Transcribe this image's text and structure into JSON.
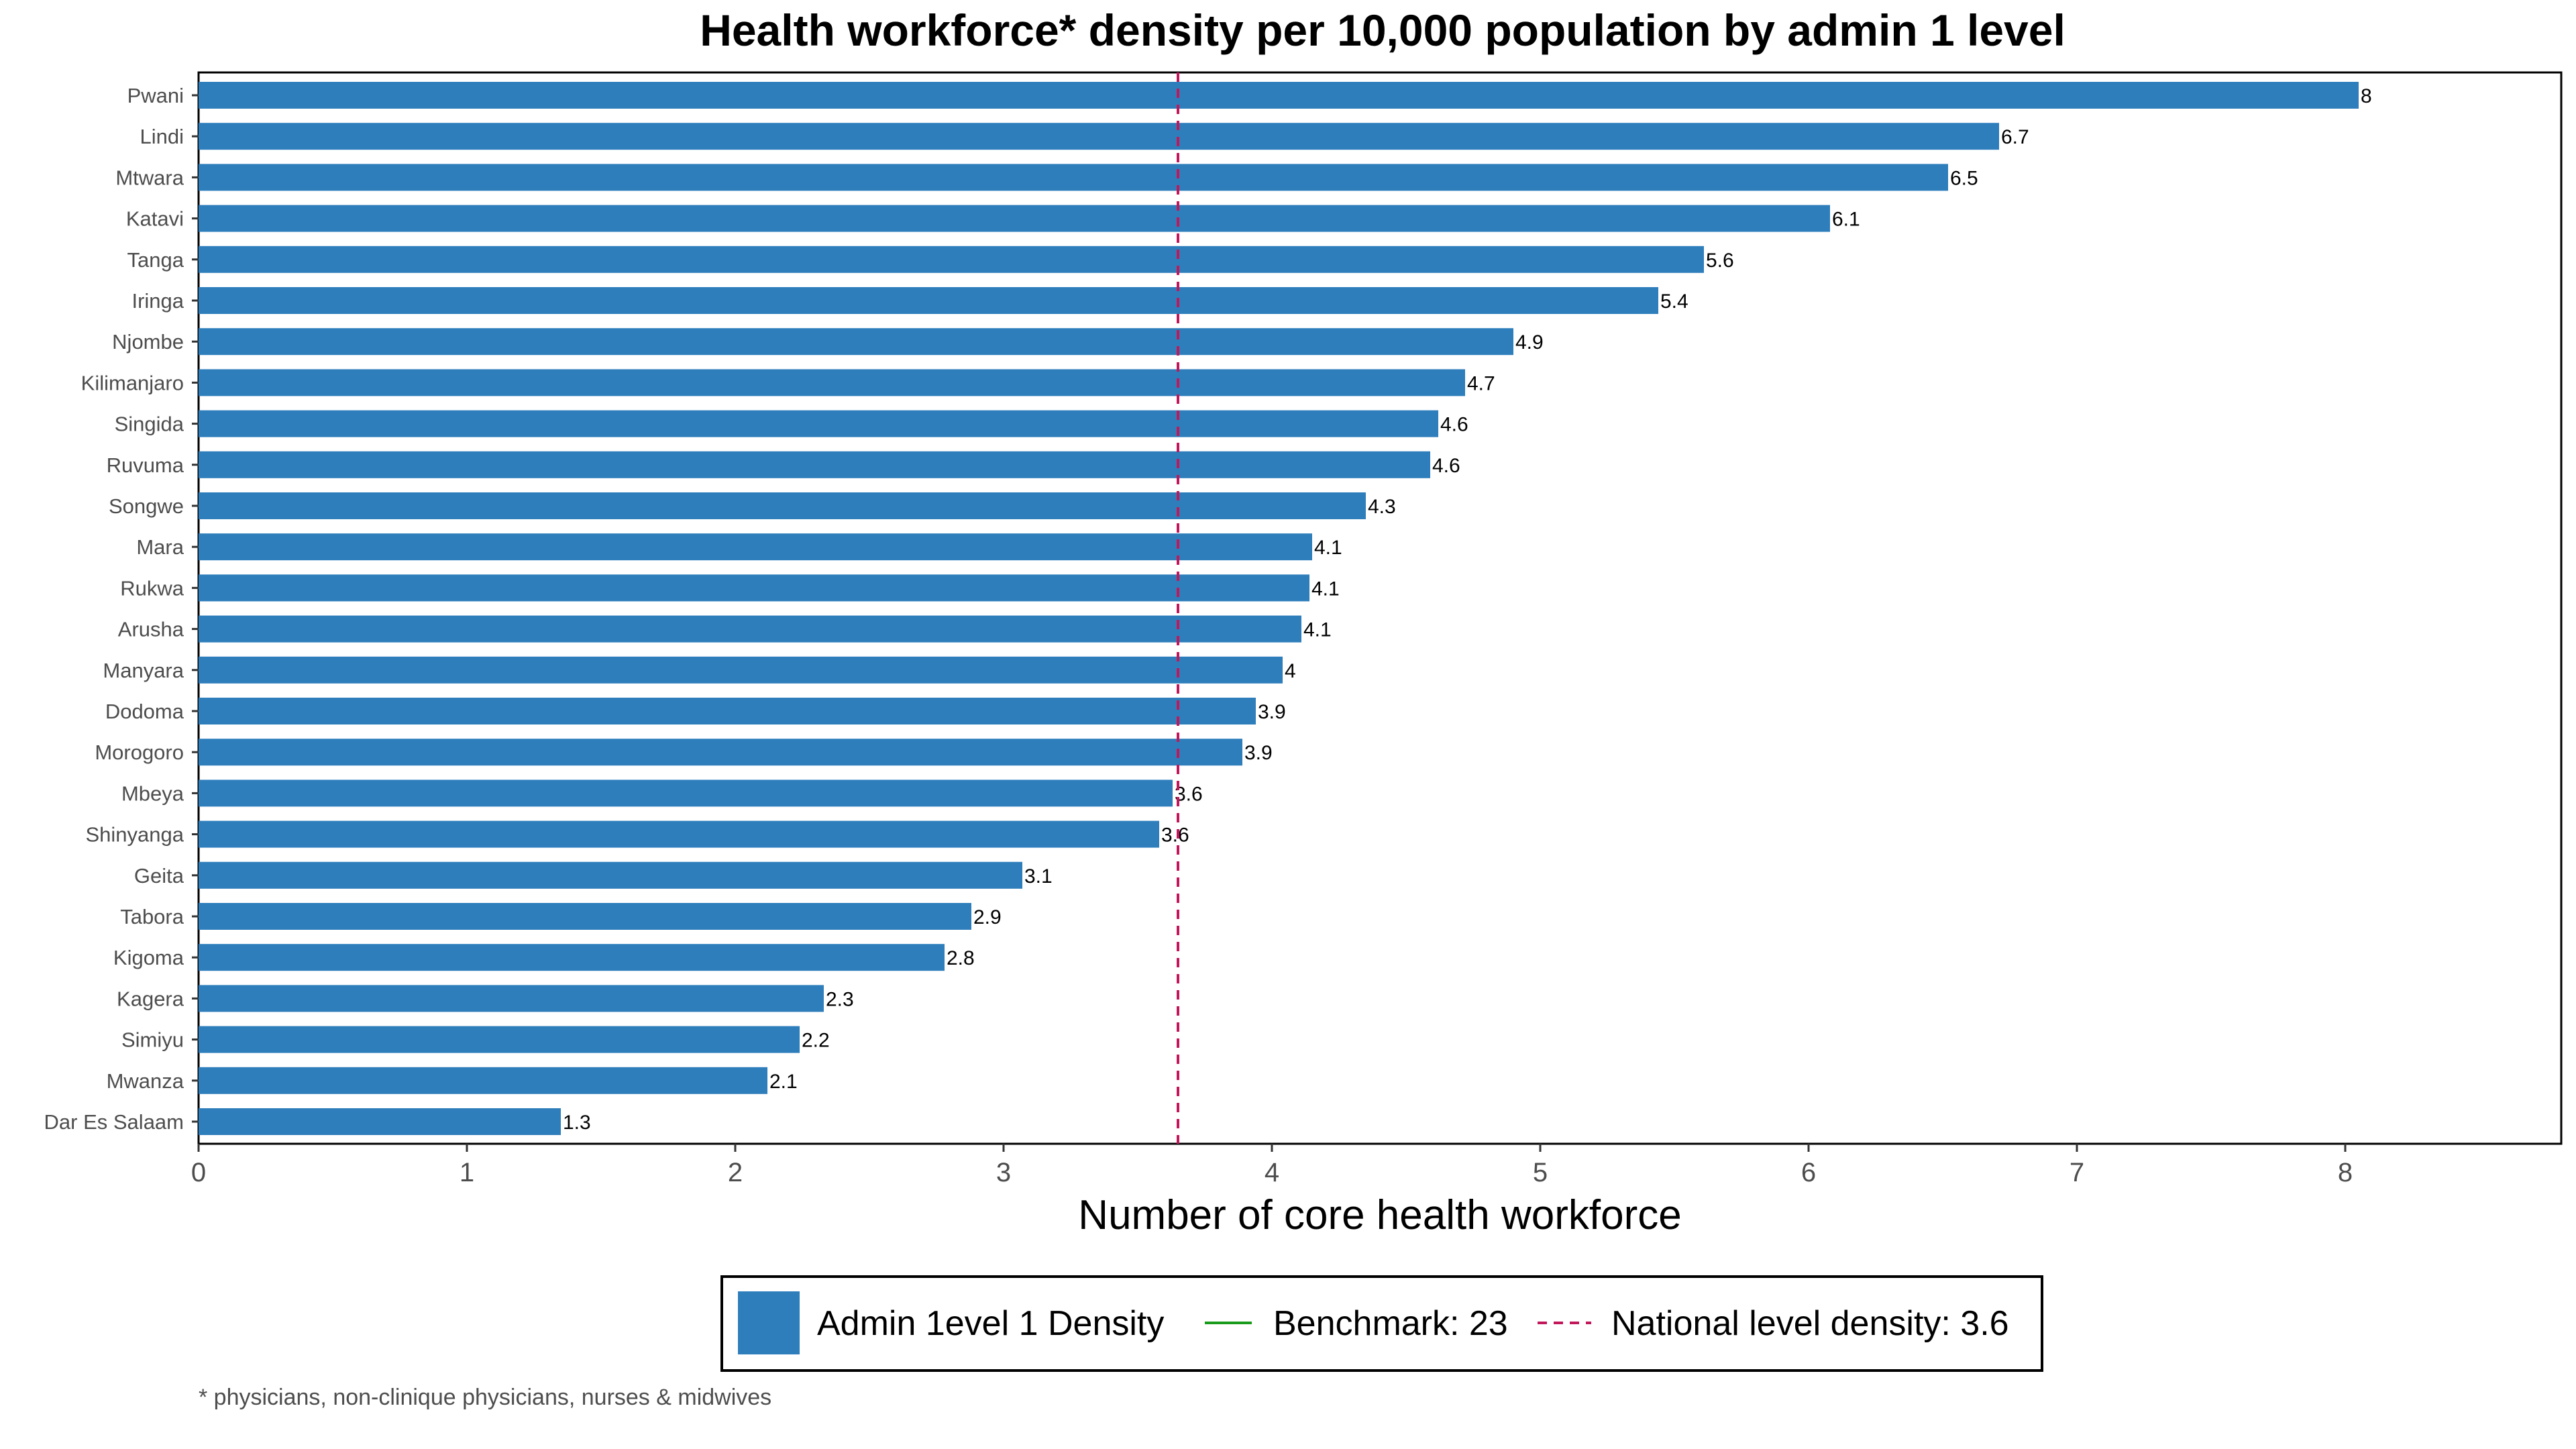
{
  "chart_data": {
    "type": "bar",
    "orientation": "horizontal",
    "title": "Health workforce* density per 10,000 population by admin 1 level",
    "xlabel": "Number of core health workforce",
    "ylabel": "",
    "xlim": [
      0,
      8.85
    ],
    "xticks": [
      "0",
      "1",
      "2",
      "3",
      "4",
      "5",
      "6",
      "7",
      "8"
    ],
    "categories": [
      "Pwani",
      "Lindi",
      "Mtwara",
      "Katavi",
      "Tanga",
      "Iringa",
      "Njombe",
      "Kilimanjaro",
      "Singida",
      "Ruvuma",
      "Songwe",
      "Mara",
      "Rukwa",
      "Arusha",
      "Manyara",
      "Dodoma",
      "Morogoro",
      "Mbeya",
      "Shinyanga",
      "Geita",
      "Tabora",
      "Kigoma",
      "Kagera",
      "Simiyu",
      "Mwanza",
      "Dar Es Salaam"
    ],
    "values": [
      8.05,
      6.71,
      6.52,
      6.08,
      5.61,
      5.44,
      4.9,
      4.72,
      4.62,
      4.59,
      4.35,
      4.15,
      4.14,
      4.11,
      4.04,
      3.94,
      3.89,
      3.63,
      3.58,
      3.07,
      2.88,
      2.78,
      2.33,
      2.24,
      2.12,
      1.35
    ],
    "value_labels": [
      "8",
      "6.7",
      "6.5",
      "6.1",
      "5.6",
      "5.4",
      "4.9",
      "4.7",
      "4.6",
      "4.6",
      "4.3",
      "4.1",
      "4.1",
      "4.1",
      "4",
      "3.9",
      "3.9",
      "3.6",
      "3.6",
      "3.1",
      "2.9",
      "2.8",
      "2.3",
      "2.2",
      "2.1",
      "1.3"
    ],
    "reference_line": {
      "value": 3.65,
      "style": "dashed",
      "color": "#c2185b"
    },
    "grid": false,
    "legend_position": "bottom",
    "legend": [
      {
        "label": "Admin 1evel 1 Density",
        "kind": "box",
        "color": "#2e7ebc"
      },
      {
        "label": "Benchmark: 23",
        "kind": "line",
        "color": "#1a9a1a"
      },
      {
        "label": "National level density: 3.6",
        "kind": "dashed",
        "color": "#c2185b"
      }
    ],
    "caption": "* physicians, non-clinique physicians, nurses & midwives",
    "colors": {
      "bar": "#2e7ebc",
      "national": "#c2185b",
      "benchmark": "#1a9a1a"
    }
  }
}
